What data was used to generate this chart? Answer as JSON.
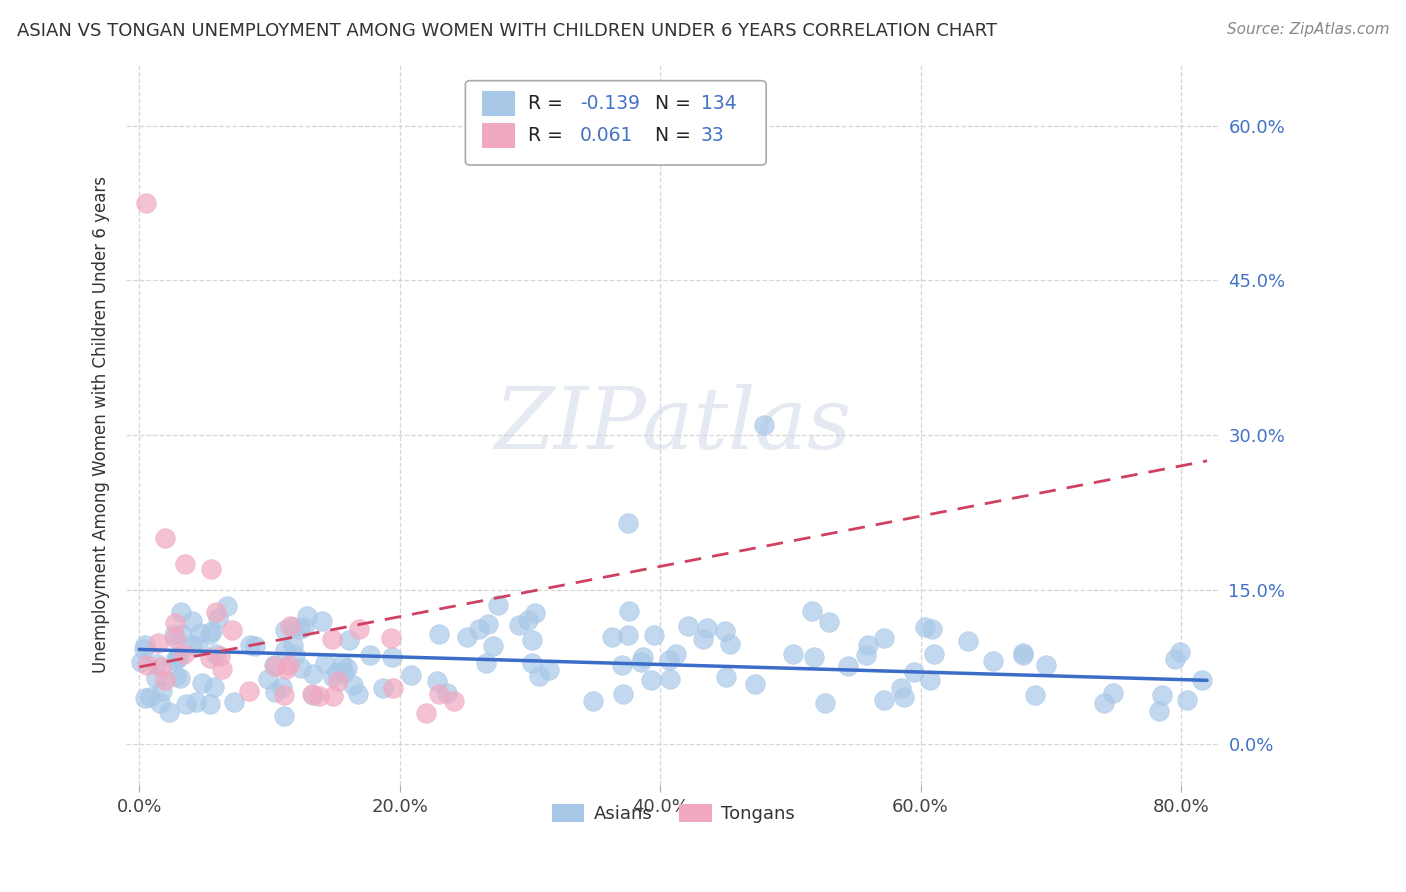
{
  "title": "ASIAN VS TONGAN UNEMPLOYMENT AMONG WOMEN WITH CHILDREN UNDER 6 YEARS CORRELATION CHART",
  "source": "Source: ZipAtlas.com",
  "ylabel": "Unemployment Among Women with Children Under 6 years",
  "xlim": [
    -0.01,
    0.83
  ],
  "ylim": [
    -0.04,
    0.66
  ],
  "yticks": [
    0.0,
    0.15,
    0.3,
    0.45,
    0.6
  ],
  "ytick_labels": [
    "0.0%",
    "15.0%",
    "30.0%",
    "45.0%",
    "60.0%"
  ],
  "xticks": [
    0.0,
    0.2,
    0.4,
    0.6,
    0.8
  ],
  "xtick_labels": [
    "0.0%",
    "20.0%",
    "40.0%",
    "60.0%",
    "80.0%"
  ],
  "asian_R": -0.139,
  "asian_N": 134,
  "tongan_R": 0.061,
  "tongan_N": 33,
  "asian_color": "#a8c8e8",
  "tongan_color": "#f0a8c0",
  "asian_line_color": "#3a6cc8",
  "tongan_line_color": "#d04060",
  "background_color": "#ffffff",
  "asian_line_x0": 0.0,
  "asian_line_y0": 0.092,
  "asian_line_x1": 0.82,
  "asian_line_y1": 0.062,
  "tongan_line_x0": 0.0,
  "tongan_line_y0": 0.075,
  "tongan_line_x1": 0.82,
  "tongan_line_y1": 0.275
}
